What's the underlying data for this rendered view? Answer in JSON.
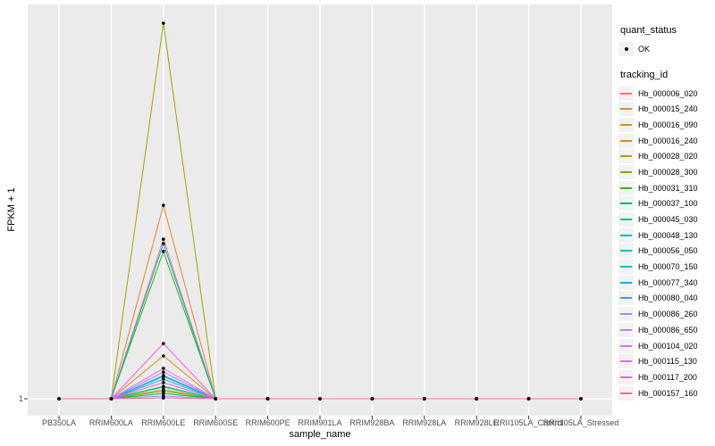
{
  "figure": {
    "background": "#ffffff",
    "panel_background": "#ebebeb",
    "grid_color": "#ffffff",
    "axis_text_color": "#4d4d4d",
    "tick_mark_color": "#333333",
    "point_color": "#000000",
    "legend_key_background": "#f2f2f2"
  },
  "y_axis": {
    "title": "FPKM + 1",
    "ticks": [
      "1"
    ]
  },
  "x_axis": {
    "title": "sample_name"
  },
  "legend": {
    "quant_status": {
      "title": "quant_status",
      "items": [
        {
          "label": "OK",
          "marker": "point",
          "color": "#000000"
        }
      ]
    },
    "tracking_id": {
      "title": "tracking_id"
    }
  },
  "chart_data": {
    "type": "line",
    "title": "",
    "xlabel": "sample_name",
    "ylabel": "FPKM + 1",
    "x_categories": [
      "PB350LA",
      "RRIM600LA",
      "RRIM600LE",
      "RRIM600SE",
      "RRIM600PE",
      "RRIM901LA",
      "RRIM928BA",
      "RRIM928LA",
      "RRIM928LE",
      "RRII105LA_Control",
      "RRII105LA_Stressed"
    ],
    "y_tick_labels": [
      "1"
    ],
    "baseline_value": 1,
    "peak_category": "RRIM600LE",
    "note": "All series sit at FPKM+1 = 1 for every sample except RRIM600LE; peak_fraction is the peak height at RRIM600LE as a fraction of the tallest peak. Black dots mark quant_status=OK at every sample point.",
    "grid": "white major gridlines on gray panel",
    "legend_position": "right",
    "series": [
      {
        "name": "Hb_000006_020",
        "color": "#F8766D",
        "peak_fraction": 0.425
      },
      {
        "name": "Hb_000015_240",
        "color": "#EA8331",
        "peak_fraction": 0.515
      },
      {
        "name": "Hb_000016_090",
        "color": "#D89000",
        "peak_fraction": 0.114
      },
      {
        "name": "Hb_000016_240",
        "color": "#C09B00",
        "peak_fraction": 0.024
      },
      {
        "name": "Hb_000028_020",
        "color": "#A3A500",
        "peak_fraction": 1.0
      },
      {
        "name": "Hb_000028_300",
        "color": "#7CAE00",
        "peak_fraction": 0.02
      },
      {
        "name": "Hb_000031_310",
        "color": "#39B600",
        "peak_fraction": 0.392
      },
      {
        "name": "Hb_000037_100",
        "color": "#00BB4E",
        "peak_fraction": 0.014
      },
      {
        "name": "Hb_000045_030",
        "color": "#00BF7D",
        "peak_fraction": 0.033
      },
      {
        "name": "Hb_000048_130",
        "color": "#00C1A3",
        "peak_fraction": 0.031
      },
      {
        "name": "Hb_000056_050",
        "color": "#00BFC4",
        "peak_fraction": 0.062
      },
      {
        "name": "Hb_000070_150",
        "color": "#00BAE0",
        "peak_fraction": 0.059
      },
      {
        "name": "Hb_000077_340",
        "color": "#00B0F6",
        "peak_fraction": 0.413
      },
      {
        "name": "Hb_000080_040",
        "color": "#35A2FF",
        "peak_fraction": 0.052
      },
      {
        "name": "Hb_000086_260",
        "color": "#9590FF",
        "peak_fraction": 0.007
      },
      {
        "name": "Hb_000086_650",
        "color": "#C77CFF",
        "peak_fraction": 0.081
      },
      {
        "name": "Hb_000104_020",
        "color": "#E76BF3",
        "peak_fraction": 0.071
      },
      {
        "name": "Hb_000115_130",
        "color": "#FA62DB",
        "peak_fraction": 0.147
      },
      {
        "name": "Hb_000117_200",
        "color": "#FF62BC",
        "peak_fraction": 0.043
      },
      {
        "name": "Hb_000157_160",
        "color": "#FF6A98",
        "peak_fraction": 0.002
      }
    ]
  }
}
